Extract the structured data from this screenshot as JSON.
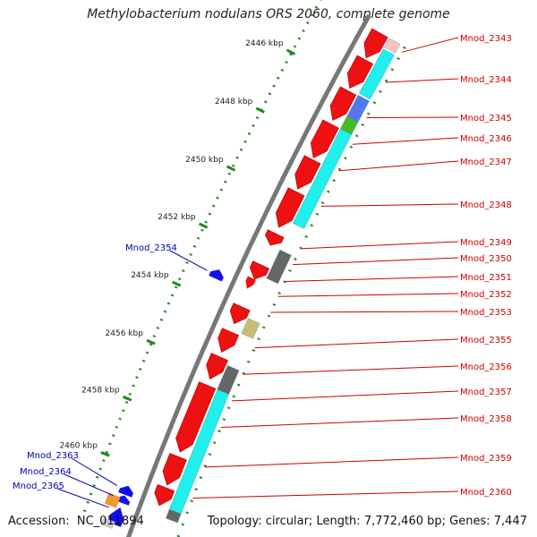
{
  "title": "Methylobacterium nodulans ORS 2060, complete genome",
  "footer": {
    "accession_label": "Accession:",
    "accession": "NC_011894",
    "topology_label": "Topology:",
    "topology": "circular",
    "length_label": "Length:",
    "length": "7,772,460 bp",
    "genes_label": "Genes:",
    "genes": "7,447"
  },
  "colors": {
    "forward_cds": "#ee1111",
    "reverse_cds": "#1010ee",
    "cog_cyan": "#22eeee",
    "cog_gray": "#666666",
    "cog_tan": "#ccbb77",
    "cog_green": "#44bb22",
    "cog_blue": "#5577ee",
    "cog_orange": "#ee9933",
    "cog_pink": "#ffc0c0",
    "ticks": "#228822",
    "label_forward": "#cc0000",
    "label_reverse": "#0000bb"
  },
  "scale_labels": [
    "2446 kbp",
    "2448 kbp",
    "2450 kbp",
    "2452 kbp",
    "2454 kbp",
    "2456 kbp",
    "2458 kbp",
    "2460 kbp"
  ],
  "gene_labels_forward": [
    "Mnod_2343",
    "Mnod_2344",
    "Mnod_2345",
    "Mnod_2346",
    "Mnod_2347",
    "Mnod_2348",
    "Mnod_2349",
    "Mnod_2350",
    "Mnod_2351",
    "Mnod_2352",
    "Mnod_2353",
    "Mnod_2355",
    "Mnod_2356",
    "Mnod_2357",
    "Mnod_2358",
    "Mnod_2359",
    "Mnod_2360"
  ],
  "gene_labels_reverse": [
    "Mnod_2354",
    "Mnod_2363",
    "Mnod_2364",
    "Mnod_2365"
  ]
}
